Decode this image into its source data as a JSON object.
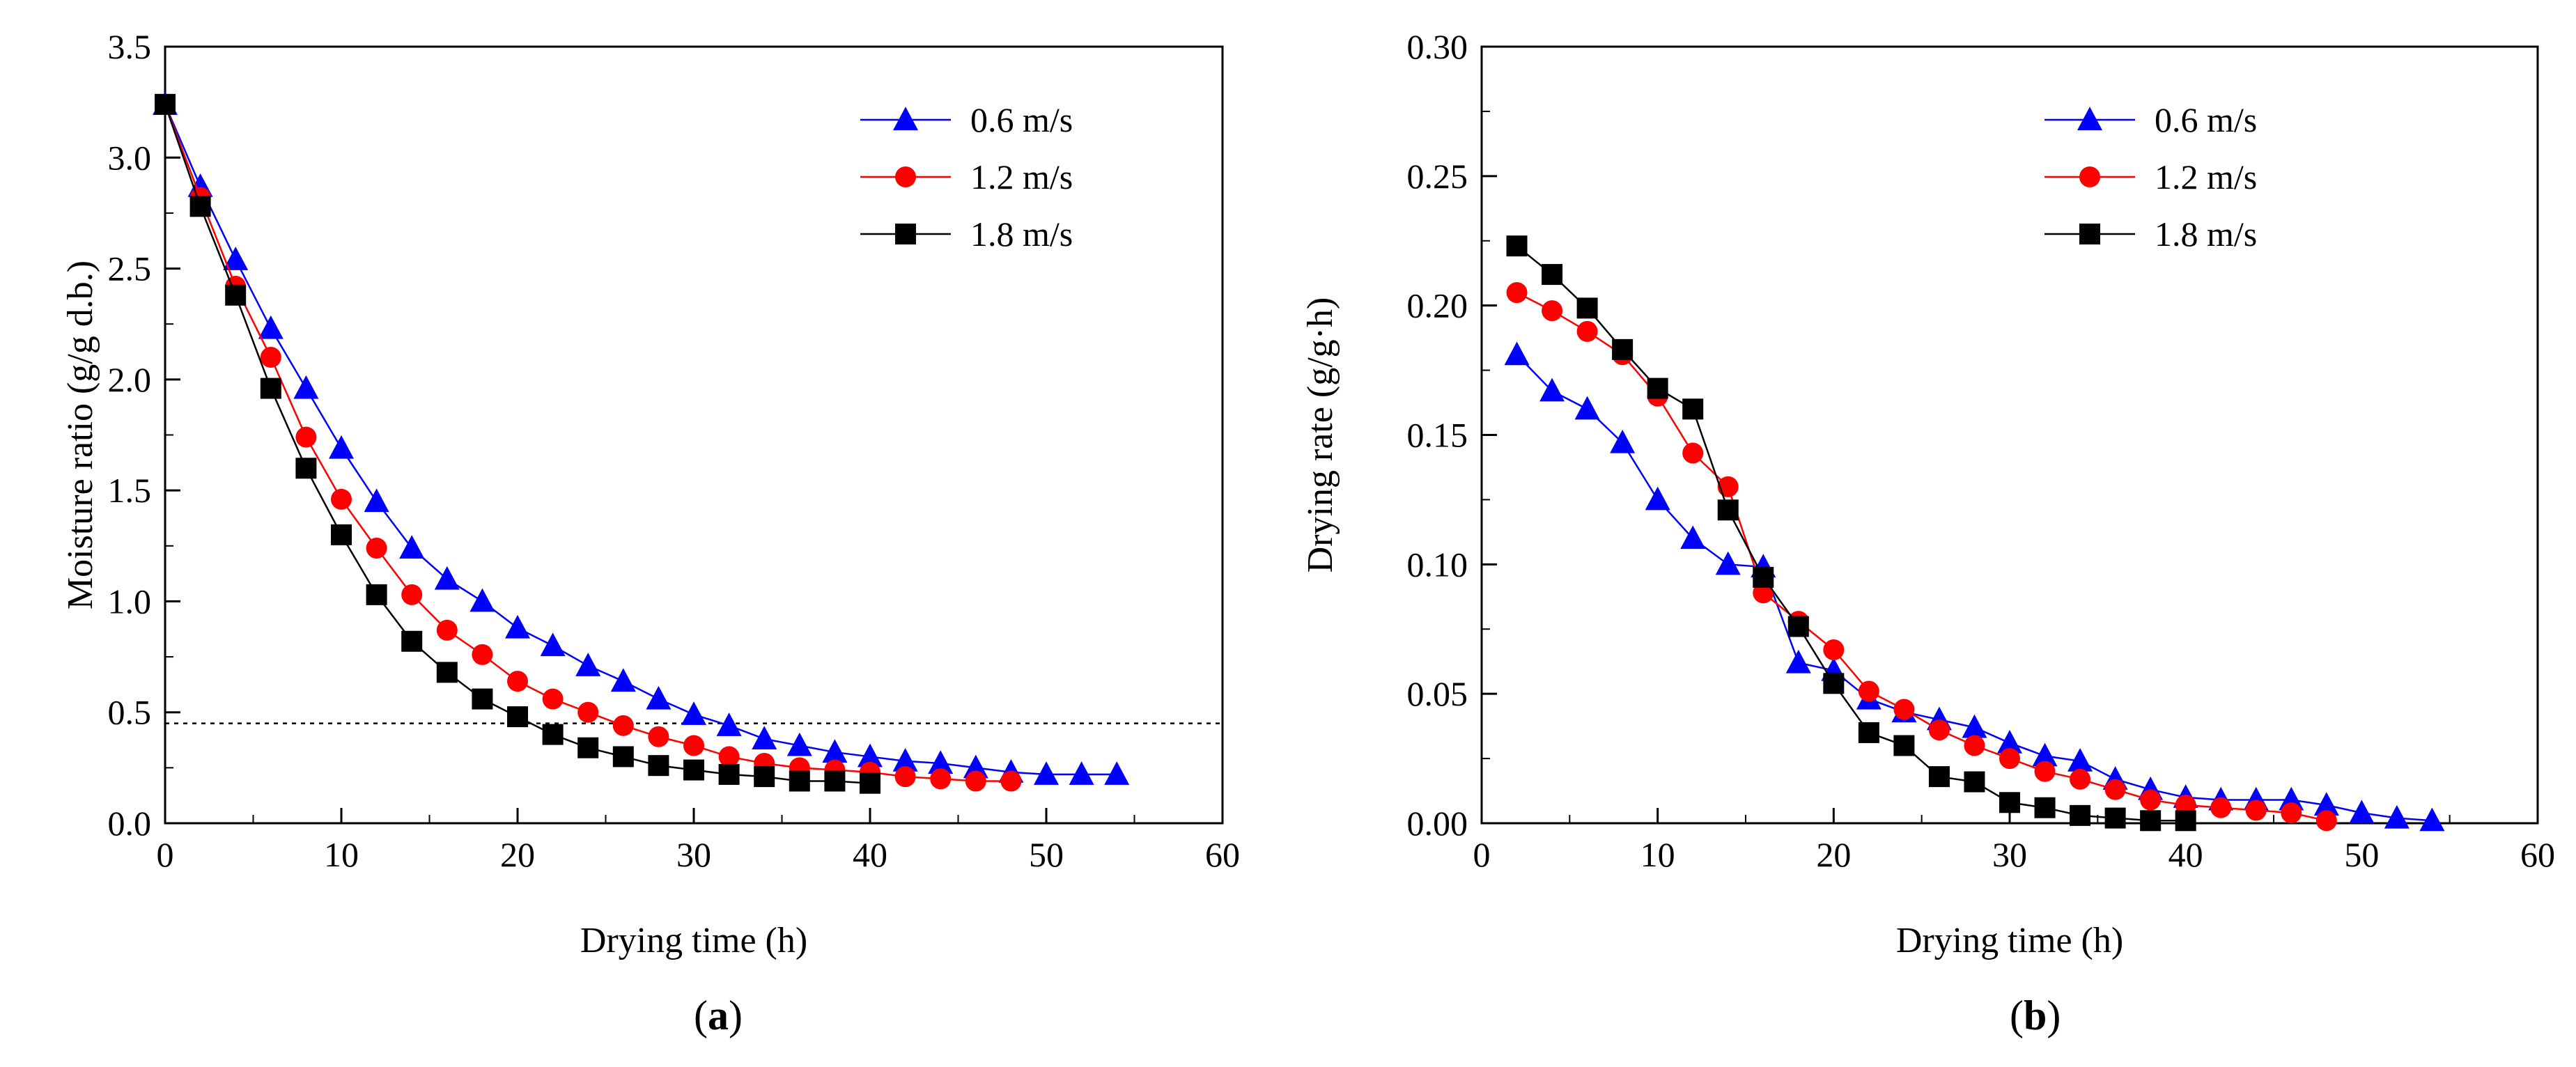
{
  "chart_data": [
    {
      "id": "a",
      "type": "line",
      "panel_label": "(a)",
      "panel_letter": "a",
      "xlabel": "Drying time (h)",
      "ylabel": "Moisture ratio (g/g d.b.)",
      "xlim": [
        0,
        60
      ],
      "ylim": [
        0,
        3.5
      ],
      "xticks": [
        0,
        10,
        20,
        30,
        40,
        50,
        60
      ],
      "yticks": [
        0.0,
        0.5,
        1.0,
        1.5,
        2.0,
        2.5,
        3.0,
        3.5
      ],
      "xtick_labels": [
        "0",
        "10",
        "20",
        "30",
        "40",
        "50",
        "60"
      ],
      "ytick_labels": [
        "0.0",
        "0.5",
        "1.0",
        "1.5",
        "2.0",
        "2.5",
        "3.0",
        "3.5"
      ],
      "grid": false,
      "legend_position": "top-right",
      "reference_line": {
        "y": 0.45,
        "style": "dotted"
      },
      "series": [
        {
          "name": "0.6 m/s",
          "color": "#0000ff",
          "marker": "triangle",
          "x": [
            0,
            2,
            4,
            6,
            8,
            10,
            12,
            14,
            16,
            18,
            20,
            22,
            24,
            26,
            28,
            30,
            32,
            34,
            36,
            38,
            40,
            42,
            44,
            46,
            48,
            50,
            52,
            54
          ],
          "y": [
            3.24,
            2.87,
            2.54,
            2.23,
            1.96,
            1.69,
            1.45,
            1.24,
            1.1,
            1.0,
            0.88,
            0.8,
            0.71,
            0.64,
            0.56,
            0.49,
            0.44,
            0.38,
            0.35,
            0.32,
            0.3,
            0.28,
            0.27,
            0.25,
            0.23,
            0.22,
            0.22,
            0.22
          ]
        },
        {
          "name": "1.2 m/s",
          "color": "#ff0000",
          "marker": "circle",
          "x": [
            0,
            2,
            4,
            6,
            8,
            10,
            12,
            14,
            16,
            18,
            20,
            22,
            24,
            26,
            28,
            30,
            32,
            34,
            36,
            38,
            40,
            42,
            44,
            46,
            48
          ],
          "y": [
            3.24,
            2.82,
            2.42,
            2.1,
            1.74,
            1.46,
            1.24,
            1.03,
            0.87,
            0.76,
            0.64,
            0.56,
            0.5,
            0.44,
            0.39,
            0.35,
            0.3,
            0.27,
            0.25,
            0.24,
            0.23,
            0.21,
            0.2,
            0.19,
            0.19
          ]
        },
        {
          "name": "1.8 m/s",
          "color": "#000000",
          "marker": "square",
          "x": [
            0,
            2,
            4,
            6,
            8,
            10,
            12,
            14,
            16,
            18,
            20,
            22,
            24,
            26,
            28,
            30,
            32,
            34,
            36,
            38,
            40
          ],
          "y": [
            3.24,
            2.78,
            2.38,
            1.96,
            1.6,
            1.3,
            1.03,
            0.82,
            0.68,
            0.56,
            0.48,
            0.4,
            0.34,
            0.3,
            0.26,
            0.24,
            0.22,
            0.21,
            0.19,
            0.19,
            0.18
          ]
        }
      ]
    },
    {
      "id": "b",
      "type": "line",
      "panel_label": "(b)",
      "panel_letter": "b",
      "xlabel": "Drying time (h)",
      "ylabel": "Drying rate (g/g·h)",
      "xlim": [
        0,
        60
      ],
      "ylim": [
        0,
        0.3
      ],
      "xticks": [
        0,
        10,
        20,
        30,
        40,
        50,
        60
      ],
      "yticks": [
        0.0,
        0.05,
        0.1,
        0.15,
        0.2,
        0.25,
        0.3
      ],
      "xtick_labels": [
        "0",
        "10",
        "20",
        "30",
        "40",
        "50",
        "60"
      ],
      "ytick_labels": [
        "0.00",
        "0.05",
        "0.10",
        "0.15",
        "0.20",
        "0.25",
        "0.30"
      ],
      "grid": false,
      "legend_position": "top-right",
      "series": [
        {
          "name": "0.6 m/s",
          "color": "#0000ff",
          "marker": "triangle",
          "x": [
            2,
            4,
            6,
            8,
            10,
            12,
            14,
            16,
            18,
            20,
            22,
            24,
            26,
            28,
            30,
            32,
            34,
            36,
            38,
            40,
            42,
            44,
            46,
            48,
            50,
            52,
            54
          ],
          "y": [
            0.181,
            0.167,
            0.16,
            0.147,
            0.125,
            0.11,
            0.1,
            0.099,
            0.062,
            0.059,
            0.048,
            0.043,
            0.04,
            0.037,
            0.031,
            0.026,
            0.024,
            0.017,
            0.013,
            0.01,
            0.009,
            0.009,
            0.009,
            0.007,
            0.004,
            0.002,
            0.001
          ]
        },
        {
          "name": "1.2 m/s",
          "color": "#ff0000",
          "marker": "circle",
          "x": [
            2,
            4,
            6,
            8,
            10,
            12,
            14,
            16,
            18,
            20,
            22,
            24,
            26,
            28,
            30,
            32,
            34,
            36,
            38,
            40,
            42,
            44,
            46,
            48
          ],
          "y": [
            0.205,
            0.198,
            0.19,
            0.181,
            0.165,
            0.143,
            0.13,
            0.089,
            0.078,
            0.067,
            0.051,
            0.044,
            0.036,
            0.03,
            0.025,
            0.02,
            0.017,
            0.013,
            0.009,
            0.007,
            0.006,
            0.005,
            0.004,
            0.001
          ]
        },
        {
          "name": "1.8 m/s",
          "color": "#000000",
          "marker": "square",
          "x": [
            2,
            4,
            6,
            8,
            10,
            12,
            14,
            16,
            18,
            20,
            22,
            24,
            26,
            28,
            30,
            32,
            34,
            36,
            38,
            40
          ],
          "y": [
            0.223,
            0.212,
            0.199,
            0.183,
            0.168,
            0.16,
            0.121,
            0.095,
            0.076,
            0.054,
            0.035,
            0.03,
            0.018,
            0.016,
            0.008,
            0.006,
            0.003,
            0.002,
            0.001,
            0.001
          ]
        }
      ]
    }
  ]
}
